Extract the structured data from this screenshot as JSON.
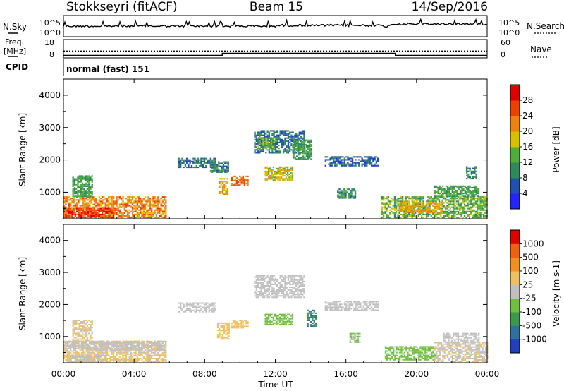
{
  "header": {
    "station": "Stokkseyri (fitACF)",
    "beam": "Beam 15",
    "date": "14/Sep/2016"
  },
  "noise_panel": {
    "left_label": "N.Sky",
    "right_label": "N.Search",
    "left_ticks": [
      "10^5",
      "10^0"
    ],
    "right_ticks": [
      "10^5",
      "10^0"
    ]
  },
  "freq_panel": {
    "left_label_line1": "Freq.",
    "left_label_line2": "[MHz]",
    "right_label": "Nave",
    "left_ticks": [
      "18",
      "8"
    ],
    "right_ticks": [
      "60",
      "0"
    ],
    "nave_steps": [
      {
        "t": 0,
        "v": 4
      },
      {
        "t": 9.0,
        "v": 12
      },
      {
        "t": 18.8,
        "v": 4
      }
    ],
    "freq_level": 11.5
  },
  "cpid": {
    "label": "CPID",
    "value": "normal (fast) 151"
  },
  "x_axis": {
    "label": "Time UT",
    "range": [
      0,
      24
    ],
    "tick_values": [
      0,
      4,
      8,
      12,
      16,
      20,
      24
    ],
    "tick_labels": [
      "00:00",
      "04:00",
      "08:00",
      "12:00",
      "16:00",
      "20:00",
      "00:00"
    ]
  },
  "chart_data": [
    {
      "type": "heatmap",
      "title": "",
      "ylabel": "Slant Range [km]",
      "ylim": [
        180,
        4500
      ],
      "y_ticks": [
        1000,
        2000,
        3000,
        4000
      ],
      "colorbar": {
        "label": "Power [dB]",
        "tick_labels": [
          "4",
          "8",
          "12",
          "16",
          "20",
          "24",
          "28"
        ],
        "colors": [
          "#2424ff",
          "#2050b0",
          "#2e8a5a",
          "#4fae3a",
          "#d6c000",
          "#f08010",
          "#f04000",
          "#e00000"
        ],
        "range": [
          0,
          32
        ]
      },
      "regions": [
        {
          "t0": 0.0,
          "t1": 5.8,
          "r0": 200,
          "r1": 850,
          "v": 22
        },
        {
          "t0": 0.0,
          "t1": 2.8,
          "r0": 200,
          "r1": 500,
          "v": 27
        },
        {
          "t0": 0.5,
          "t1": 1.6,
          "r0": 850,
          "r1": 1500,
          "v": 12
        },
        {
          "t0": 6.5,
          "t1": 8.6,
          "r0": 1750,
          "r1": 2050,
          "v": 8
        },
        {
          "t0": 8.3,
          "t1": 9.3,
          "r0": 1600,
          "r1": 1950,
          "v": 10
        },
        {
          "t0": 8.8,
          "t1": 9.3,
          "r0": 900,
          "r1": 1400,
          "v": 20
        },
        {
          "t0": 9.5,
          "t1": 10.4,
          "r0": 1200,
          "r1": 1500,
          "v": 24
        },
        {
          "t0": 10.8,
          "t1": 13.6,
          "r0": 2200,
          "r1": 2900,
          "v": 8
        },
        {
          "t0": 11.0,
          "t1": 12.0,
          "r0": 2300,
          "r1": 2700,
          "v": 14
        },
        {
          "t0": 11.4,
          "t1": 13.0,
          "r0": 1350,
          "r1": 1800,
          "v": 18
        },
        {
          "t0": 13.0,
          "t1": 14.0,
          "r0": 2000,
          "r1": 2600,
          "v": 12
        },
        {
          "t0": 14.8,
          "t1": 17.8,
          "r0": 1800,
          "r1": 2100,
          "v": 7
        },
        {
          "t0": 15.5,
          "t1": 16.5,
          "r0": 800,
          "r1": 1100,
          "v": 10
        },
        {
          "t0": 18.0,
          "t1": 24.0,
          "r0": 200,
          "r1": 850,
          "v": 14
        },
        {
          "t0": 19.0,
          "t1": 21.5,
          "r0": 350,
          "r1": 700,
          "v": 20
        },
        {
          "t0": 21.0,
          "t1": 23.5,
          "r0": 850,
          "r1": 1200,
          "v": 12
        },
        {
          "t0": 22.8,
          "t1": 23.4,
          "r0": 1400,
          "r1": 1800,
          "v": 10
        }
      ]
    },
    {
      "type": "heatmap",
      "title": "",
      "ylabel": "Slant Range [km]",
      "ylim": [
        180,
        4500
      ],
      "y_ticks": [
        1000,
        2000,
        3000,
        4000
      ],
      "colorbar": {
        "label": "Velocity [m s-1]",
        "tick_labels": [
          "1000",
          "500",
          "100",
          "25",
          "-25",
          "-100",
          "-500",
          "-1000"
        ],
        "colors": [
          "#2040c0",
          "#3070a0",
          "#3a9a4a",
          "#70c040",
          "#c0c0c0",
          "#f0c060",
          "#f09020",
          "#f06010",
          "#e00000"
        ],
        "range": [
          -1200,
          1200
        ]
      },
      "regions": [
        {
          "t0": 0.0,
          "t1": 5.8,
          "r0": 200,
          "r1": 850,
          "v": 150
        },
        {
          "t0": 0.0,
          "t1": 5.8,
          "r0": 550,
          "r1": 850,
          "v": 0
        },
        {
          "t0": 0.2,
          "t1": 2.5,
          "r0": 200,
          "r1": 450,
          "v": 120
        },
        {
          "t0": 0.5,
          "t1": 1.6,
          "r0": 850,
          "r1": 1500,
          "v": 140
        },
        {
          "t0": 6.5,
          "t1": 8.6,
          "r0": 1750,
          "r1": 2050,
          "v": 0
        },
        {
          "t0": 8.7,
          "t1": 9.4,
          "r0": 900,
          "r1": 1400,
          "v": 250
        },
        {
          "t0": 9.5,
          "t1": 10.4,
          "r0": 1250,
          "r1": 1500,
          "v": 200
        },
        {
          "t0": 10.8,
          "t1": 13.6,
          "r0": 2200,
          "r1": 2900,
          "v": 0
        },
        {
          "t0": 11.4,
          "t1": 13.0,
          "r0": 1350,
          "r1": 1700,
          "v": -300
        },
        {
          "t0": 13.8,
          "t1": 14.3,
          "r0": 1300,
          "r1": 1800,
          "v": -700
        },
        {
          "t0": 14.8,
          "t1": 17.8,
          "r0": 1800,
          "r1": 2100,
          "v": 0
        },
        {
          "t0": 16.2,
          "t1": 16.8,
          "r0": 800,
          "r1": 1100,
          "v": -150
        },
        {
          "t0": 18.2,
          "t1": 21.0,
          "r0": 250,
          "r1": 700,
          "v": -180
        },
        {
          "t0": 21.0,
          "t1": 24.0,
          "r0": 200,
          "r1": 800,
          "v": 120
        },
        {
          "t0": 21.5,
          "t1": 23.5,
          "r0": 800,
          "r1": 1100,
          "v": 0
        }
      ]
    }
  ]
}
